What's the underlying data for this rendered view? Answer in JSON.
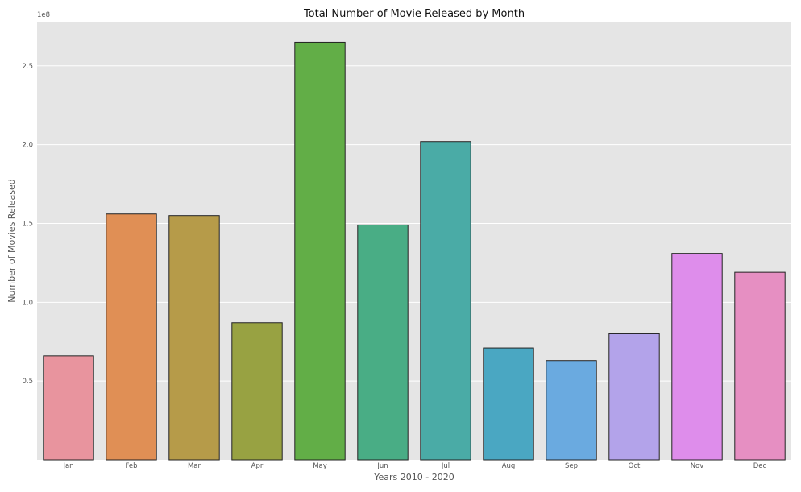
{
  "chart_data": {
    "type": "bar",
    "title": "Total Number of Movie Released by Month",
    "xlabel": "Years 2010 - 2020",
    "ylabel": "Number of Movies Released",
    "y_offset_label": "1e8",
    "categories": [
      "Jan",
      "Feb",
      "Mar",
      "Apr",
      "May",
      "Jun",
      "Jul",
      "Aug",
      "Sep",
      "Oct",
      "Nov",
      "Dec"
    ],
    "values": [
      66000000,
      156000000,
      155000000,
      87000000,
      265000000,
      149000000,
      202000000,
      71000000,
      63000000,
      80000000,
      131000000,
      119000000
    ],
    "colors": [
      "#e8949e",
      "#e08f55",
      "#b69b49",
      "#98a242",
      "#62ae47",
      "#49ad85",
      "#4aaba6",
      "#4aa7c2",
      "#6aaae0",
      "#b3a3ea",
      "#de8deb",
      "#e68fc2"
    ],
    "ylim": [
      0,
      278000000
    ],
    "yticks": [
      50000000,
      100000000,
      150000000,
      200000000,
      250000000
    ],
    "ytick_labels": [
      "0.5",
      "1.0",
      "1.5",
      "2.0",
      "2.5"
    ],
    "grid": true,
    "background": "#e5e5e5"
  }
}
